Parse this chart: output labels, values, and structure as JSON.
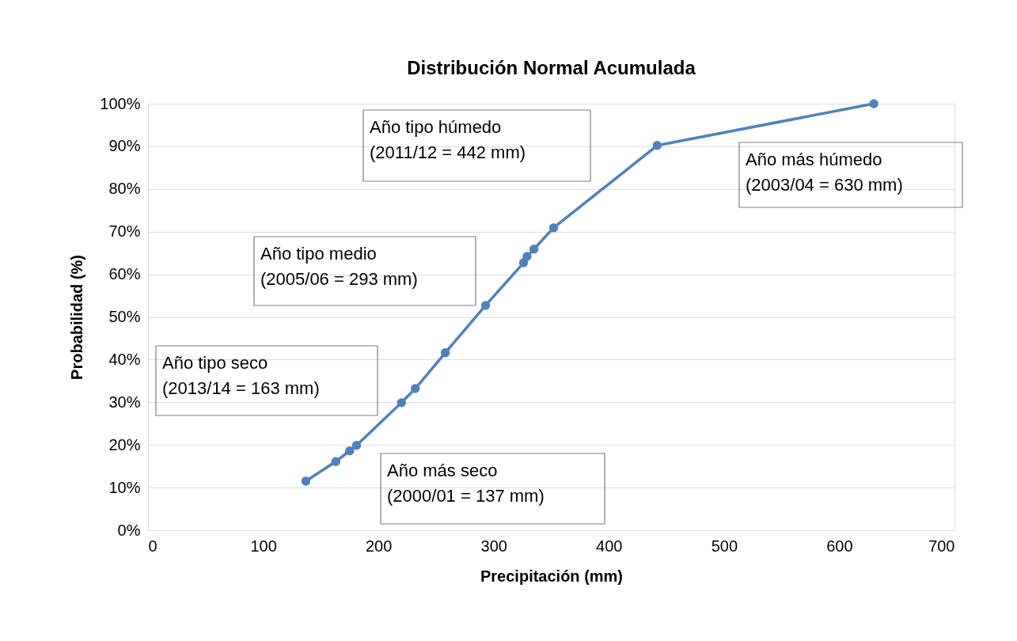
{
  "chart_data": {
    "type": "line",
    "title": "Distribución Normal Acumulada",
    "xlabel": "Precipitación (mm)",
    "ylabel": "Probabilidad (%)",
    "x": [
      137,
      163,
      175,
      181,
      220,
      232,
      258,
      293,
      326,
      329,
      335,
      352,
      442,
      630
    ],
    "series": [
      {
        "color": "#4f81bd",
        "values": [
          11.5,
          16.1,
          18.6,
          19.9,
          29.9,
          33.2,
          41.6,
          52.7,
          62.7,
          64.2,
          65.9,
          70.9,
          90.2,
          100
        ]
      }
    ],
    "xlim": [
      0,
      700
    ],
    "xticks": [
      0,
      100,
      200,
      300,
      400,
      500,
      600,
      700
    ],
    "ylim": [
      0,
      100
    ],
    "yticks": [
      {
        "value": 0,
        "label": "0%"
      },
      {
        "value": 10,
        "label": "10%"
      },
      {
        "value": 20,
        "label": "20%"
      },
      {
        "value": 30,
        "label": "30%"
      },
      {
        "value": 40,
        "label": "40%"
      },
      {
        "value": 50,
        "label": "50%"
      },
      {
        "value": 60,
        "label": "60%"
      },
      {
        "value": 70,
        "label": "70%"
      },
      {
        "value": 80,
        "label": "80%"
      },
      {
        "value": 90,
        "label": "90%"
      },
      {
        "value": 100,
        "label": "100%"
      }
    ],
    "grid": "y",
    "marker": "circle",
    "line_style": "solid",
    "annotations": [
      "Año tipo húmedo\n(2011/12 = 442 mm)",
      "Año más húmedo\n(2003/04 = 630 mm)",
      "Año tipo medio\n(2005/06 = 293 mm)",
      "Año tipo seco\n(2013/14 = 163 mm)",
      "Año más seco\n(2000/01 = 137 mm)"
    ]
  }
}
